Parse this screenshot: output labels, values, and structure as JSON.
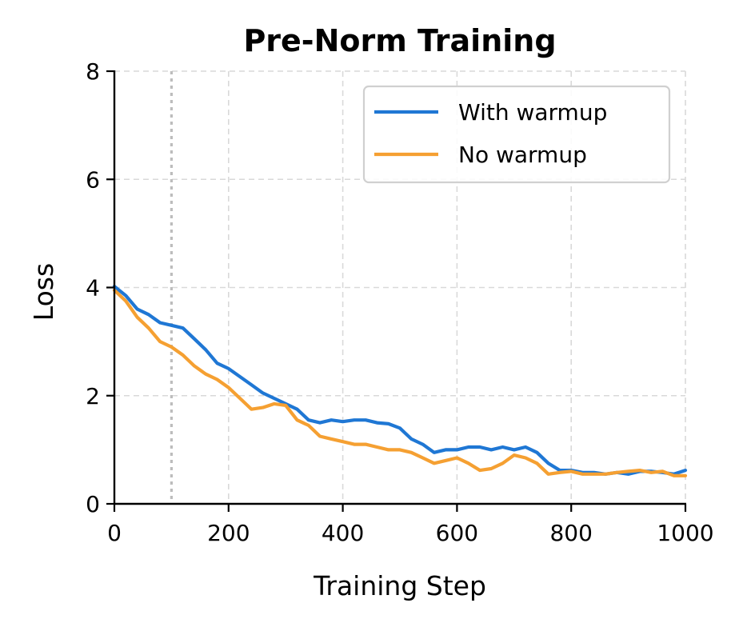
{
  "chart_data": {
    "type": "line",
    "title": "Pre-Norm Training",
    "xlabel": "Training Step",
    "ylabel": "Loss",
    "xlim": [
      0,
      1000
    ],
    "ylim": [
      0,
      8
    ],
    "xticks": [
      "0",
      "200",
      "400",
      "600",
      "800",
      "1000"
    ],
    "yticks": [
      "0",
      "2",
      "4",
      "6",
      "8"
    ],
    "grid": true,
    "legend_position": "upper-right",
    "vertical_marker_x": 100,
    "series": [
      {
        "name": "With warmup",
        "color": "#1f77d4",
        "x": [
          0,
          20,
          40,
          60,
          80,
          100,
          120,
          140,
          160,
          180,
          200,
          220,
          240,
          260,
          280,
          300,
          320,
          340,
          360,
          380,
          400,
          420,
          440,
          460,
          480,
          500,
          520,
          540,
          560,
          580,
          600,
          620,
          640,
          660,
          680,
          700,
          720,
          740,
          760,
          780,
          800,
          820,
          840,
          860,
          880,
          900,
          920,
          940,
          960,
          980,
          1000
        ],
        "y": [
          4.02,
          3.85,
          3.6,
          3.5,
          3.35,
          3.3,
          3.25,
          3.05,
          2.85,
          2.6,
          2.5,
          2.35,
          2.2,
          2.05,
          1.95,
          1.85,
          1.75,
          1.55,
          1.5,
          1.55,
          1.52,
          1.55,
          1.55,
          1.5,
          1.48,
          1.4,
          1.2,
          1.1,
          0.95,
          1.0,
          1.0,
          1.05,
          1.05,
          1.0,
          1.05,
          1.0,
          1.05,
          0.95,
          0.75,
          0.62,
          0.62,
          0.58,
          0.58,
          0.55,
          0.58,
          0.55,
          0.6,
          0.6,
          0.58,
          0.55,
          0.62
        ]
      },
      {
        "name": "No warmup",
        "color": "#f5a032",
        "x": [
          0,
          20,
          40,
          60,
          80,
          100,
          120,
          140,
          160,
          180,
          200,
          220,
          240,
          260,
          280,
          300,
          320,
          340,
          360,
          380,
          400,
          420,
          440,
          460,
          480,
          500,
          520,
          540,
          560,
          580,
          600,
          620,
          640,
          660,
          680,
          700,
          720,
          740,
          760,
          780,
          800,
          820,
          840,
          860,
          880,
          900,
          920,
          940,
          960,
          980,
          1000
        ],
        "y": [
          3.95,
          3.75,
          3.45,
          3.25,
          3.0,
          2.9,
          2.75,
          2.55,
          2.4,
          2.3,
          2.15,
          1.95,
          1.75,
          1.78,
          1.85,
          1.82,
          1.55,
          1.45,
          1.25,
          1.2,
          1.15,
          1.1,
          1.1,
          1.05,
          1.0,
          1.0,
          0.95,
          0.85,
          0.75,
          0.8,
          0.85,
          0.75,
          0.62,
          0.65,
          0.75,
          0.9,
          0.85,
          0.75,
          0.55,
          0.58,
          0.6,
          0.55,
          0.55,
          0.55,
          0.58,
          0.6,
          0.62,
          0.58,
          0.6,
          0.52,
          0.52
        ]
      }
    ]
  }
}
